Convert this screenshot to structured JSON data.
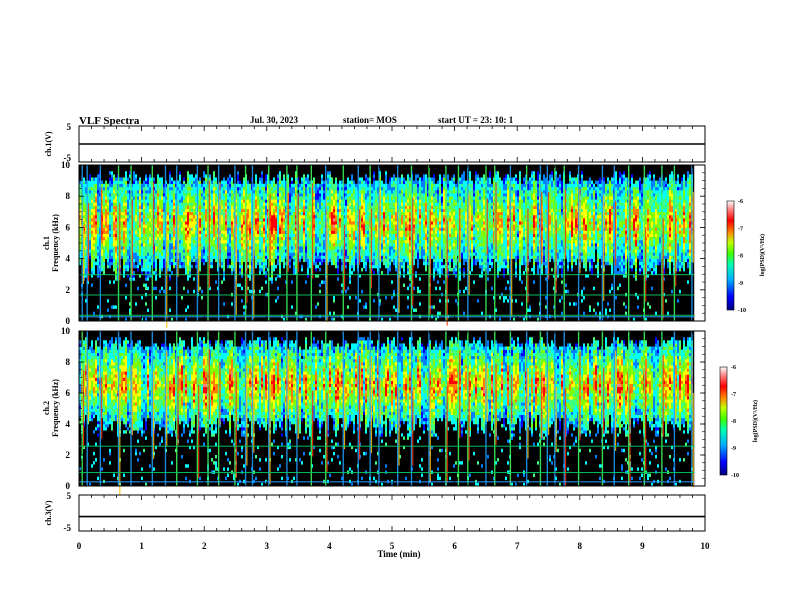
{
  "header": {
    "title": "VLF Spectra",
    "date": "Jul. 30, 2023",
    "station": "station= MOS",
    "start": "start UT =  23: 10: 1"
  },
  "colors": {
    "background": "#ffffff",
    "plot_background": "#000000",
    "colormap": [
      "#000080",
      "#0000ff",
      "#0080ff",
      "#00ffff",
      "#40ff80",
      "#80ff00",
      "#ffff00",
      "#ff8000",
      "#ff0000",
      "#ff8080",
      "#ffffff"
    ]
  },
  "chart_data": [
    {
      "type": "line",
      "panel": "ch1-voltage",
      "ylabel": "ch.1(V)",
      "ylim": [
        -5,
        5
      ],
      "yticks": [
        "5",
        "-5"
      ],
      "x": [
        0,
        10
      ],
      "values": [
        0,
        0
      ]
    },
    {
      "type": "heatmap",
      "panel": "ch1-spectrogram",
      "ylabel": "ch.1\nFrequency (kHz)",
      "ylim": [
        0,
        10
      ],
      "xlim": [
        0,
        9.83
      ],
      "yticks": [
        "0",
        "2",
        "4",
        "6",
        "8",
        "10"
      ],
      "colorbar": {
        "label": "log(PSD)(V²/Hz)",
        "range": [
          -10,
          -6
        ],
        "ticks": [
          "-6",
          "-7",
          "-8",
          "-9",
          "-10"
        ]
      },
      "emission_band_khz": [
        4,
        9.5
      ],
      "bursts_min": [
        0.04,
        0.12,
        0.33,
        0.62,
        0.82,
        1.16,
        1.37,
        1.55,
        1.88,
        2.05,
        2.22,
        2.48,
        2.65,
        2.76,
        3.02,
        3.31,
        3.47,
        3.7,
        3.93,
        4.21,
        4.45,
        4.64,
        4.78,
        5.08,
        5.3,
        5.58,
        5.85,
        6.05,
        6.2,
        6.49,
        6.63,
        6.88,
        7.14,
        7.36,
        7.47,
        7.59,
        7.74,
        7.97,
        8.35,
        8.54,
        8.77,
        9.02,
        9.3,
        9.5,
        9.78
      ],
      "lines_khz": [
        0.4,
        1.7,
        3.0
      ]
    },
    {
      "type": "heatmap",
      "panel": "ch2-spectrogram",
      "ylabel": "ch.2\nFrequency (kHz)",
      "ylim": [
        0,
        10
      ],
      "xlim": [
        0,
        9.83
      ],
      "yticks": [
        "0",
        "2",
        "4",
        "6",
        "8",
        "10"
      ],
      "colorbar": {
        "label": "log(PSD)(V²/Hz)",
        "range": [
          -10,
          -6
        ],
        "ticks": [
          "-6",
          "-7",
          "-8",
          "-9",
          "-10"
        ]
      },
      "emission_band_khz": [
        4.5,
        9.5
      ],
      "bursts_min": [
        0.04,
        0.12,
        0.33,
        0.62,
        0.82,
        1.16,
        1.37,
        1.55,
        1.88,
        2.05,
        2.22,
        2.48,
        2.65,
        2.76,
        3.02,
        3.31,
        3.47,
        3.7,
        3.93,
        4.21,
        4.45,
        4.64,
        4.78,
        5.08,
        5.3,
        5.58,
        5.85,
        6.05,
        6.2,
        6.49,
        6.63,
        6.88,
        7.14,
        7.36,
        7.47,
        7.59,
        7.74,
        7.97,
        8.35,
        8.54,
        8.77,
        9.02,
        9.3,
        9.5,
        9.78
      ],
      "lines_khz": [
        0.9,
        2.6
      ]
    },
    {
      "type": "line",
      "panel": "ch3-voltage",
      "ylabel": "ch.3(V)",
      "ylim": [
        -5,
        5
      ],
      "yticks": [
        "5",
        "-5"
      ],
      "x": [
        0,
        10
      ],
      "values": [
        -1,
        -1
      ]
    }
  ],
  "xaxis": {
    "label": "Time (min)",
    "ticks": [
      "0",
      "1",
      "2",
      "3",
      "4",
      "5",
      "6",
      "7",
      "8",
      "9",
      "10"
    ],
    "xlim": [
      0,
      10
    ]
  }
}
